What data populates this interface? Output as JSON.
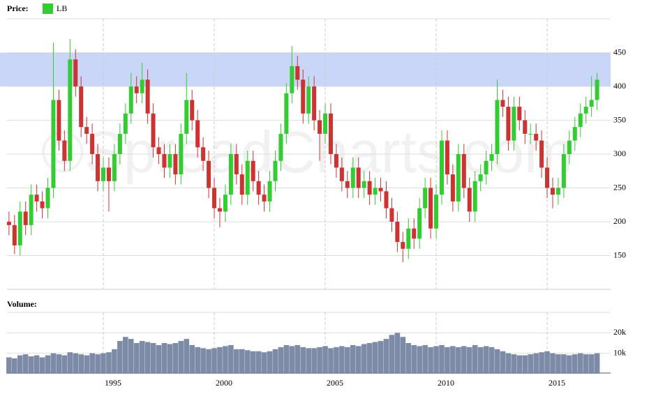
{
  "chart_data": {
    "type": "candlestick",
    "legend_label": "Price:",
    "series_name": "LB",
    "volume_label": "Volume:",
    "watermark": "©SpreadCharts.com",
    "x": [
      1990.75,
      1991,
      1991.25,
      1991.5,
      1991.75,
      1992,
      1992.25,
      1992.5,
      1992.75,
      1993,
      1993.25,
      1993.5,
      1993.75,
      1994,
      1994.25,
      1994.5,
      1994.75,
      1995,
      1995.25,
      1995.5,
      1995.75,
      1996,
      1996.25,
      1996.5,
      1996.75,
      1997,
      1997.25,
      1997.5,
      1997.75,
      1998,
      1998.25,
      1998.5,
      1998.75,
      1999,
      1999.25,
      1999.5,
      1999.75,
      2000,
      2000.25,
      2000.5,
      2000.75,
      2001,
      2001.25,
      2001.5,
      2001.75,
      2002,
      2002.25,
      2002.5,
      2002.75,
      2003,
      2003.25,
      2003.5,
      2003.75,
      2004,
      2004.25,
      2004.5,
      2004.75,
      2005,
      2005.25,
      2005.5,
      2005.75,
      2006,
      2006.25,
      2006.5,
      2006.75,
      2007,
      2007.25,
      2007.5,
      2007.75,
      2008,
      2008.25,
      2008.5,
      2008.75,
      2009,
      2009.25,
      2009.5,
      2009.75,
      2010,
      2010.25,
      2010.5,
      2010.75,
      2011,
      2011.25,
      2011.5,
      2011.75,
      2012,
      2012.25,
      2012.5,
      2012.75,
      2013,
      2013.25,
      2013.5,
      2013.75,
      2014,
      2014.25,
      2014.5,
      2014.75,
      2015,
      2015.25,
      2015.5,
      2015.75,
      2016,
      2016.25,
      2016.5,
      2016.75,
      2017,
      2017.25
    ],
    "open": [
      200,
      195,
      165,
      215,
      195,
      240,
      230,
      220,
      250,
      380,
      320,
      290,
      440,
      400,
      340,
      330,
      300,
      260,
      280,
      260,
      300,
      330,
      360,
      400,
      390,
      410,
      360,
      310,
      300,
      280,
      300,
      270,
      330,
      380,
      350,
      310,
      290,
      250,
      220,
      215,
      240,
      300,
      270,
      240,
      290,
      260,
      240,
      230,
      260,
      290,
      330,
      390,
      430,
      410,
      360,
      400,
      350,
      330,
      360,
      300,
      280,
      260,
      250,
      280,
      250,
      260,
      240,
      250,
      245,
      220,
      200,
      170,
      160,
      190,
      175,
      220,
      250,
      190,
      240,
      320,
      270,
      230,
      300,
      250,
      215,
      260,
      270,
      290,
      300,
      380,
      370,
      320,
      370,
      350,
      330,
      330,
      320,
      280,
      250,
      240,
      250,
      300,
      320,
      340,
      360,
      370,
      380
    ],
    "high": [
      215,
      210,
      230,
      230,
      255,
      255,
      245,
      265,
      465,
      395,
      335,
      470,
      455,
      415,
      355,
      345,
      315,
      295,
      295,
      315,
      345,
      375,
      420,
      415,
      435,
      425,
      375,
      325,
      315,
      315,
      315,
      345,
      420,
      395,
      365,
      325,
      305,
      265,
      235,
      255,
      315,
      315,
      285,
      305,
      305,
      275,
      255,
      275,
      305,
      345,
      405,
      460,
      445,
      425,
      415,
      415,
      365,
      375,
      375,
      315,
      295,
      275,
      295,
      295,
      275,
      275,
      265,
      265,
      260,
      235,
      215,
      185,
      205,
      205,
      235,
      265,
      265,
      255,
      335,
      335,
      285,
      315,
      315,
      265,
      275,
      285,
      305,
      315,
      410,
      395,
      385,
      385,
      385,
      365,
      345,
      345,
      335,
      295,
      265,
      265,
      315,
      335,
      355,
      375,
      385,
      415,
      420
    ],
    "low": [
      180,
      152,
      150,
      180,
      180,
      215,
      205,
      205,
      235,
      305,
      275,
      275,
      385,
      325,
      315,
      285,
      245,
      245,
      215,
      245,
      285,
      315,
      345,
      375,
      375,
      345,
      295,
      285,
      265,
      265,
      255,
      255,
      315,
      335,
      295,
      275,
      235,
      205,
      192,
      200,
      225,
      255,
      225,
      225,
      245,
      225,
      215,
      215,
      245,
      275,
      315,
      375,
      395,
      345,
      345,
      335,
      290,
      315,
      285,
      265,
      245,
      235,
      235,
      235,
      235,
      225,
      225,
      230,
      205,
      185,
      155,
      140,
      145,
      160,
      160,
      205,
      175,
      175,
      225,
      255,
      215,
      215,
      235,
      200,
      200,
      245,
      255,
      275,
      285,
      355,
      305,
      305,
      335,
      315,
      315,
      305,
      265,
      235,
      220,
      225,
      235,
      285,
      305,
      325,
      345,
      355,
      365
    ],
    "close": [
      195,
      165,
      215,
      195,
      240,
      230,
      220,
      250,
      380,
      320,
      290,
      440,
      400,
      340,
      330,
      300,
      260,
      280,
      260,
      300,
      330,
      360,
      400,
      390,
      410,
      360,
      310,
      300,
      280,
      300,
      270,
      330,
      380,
      350,
      310,
      290,
      250,
      220,
      215,
      240,
      300,
      270,
      240,
      290,
      260,
      240,
      230,
      260,
      290,
      330,
      390,
      430,
      410,
      360,
      400,
      350,
      330,
      360,
      300,
      280,
      260,
      250,
      280,
      250,
      260,
      240,
      250,
      245,
      220,
      200,
      170,
      160,
      190,
      175,
      220,
      250,
      190,
      240,
      320,
      270,
      230,
      300,
      250,
      215,
      260,
      270,
      290,
      300,
      380,
      370,
      320,
      370,
      350,
      330,
      330,
      320,
      280,
      250,
      240,
      250,
      300,
      320,
      340,
      360,
      370,
      380,
      410
    ],
    "volume": [
      8000,
      7500,
      9000,
      9500,
      8500,
      9000,
      8000,
      9000,
      10000,
      9500,
      9000,
      10500,
      10000,
      9500,
      9000,
      10000,
      9500,
      10000,
      10500,
      12000,
      16000,
      18000,
      17000,
      15000,
      16000,
      15500,
      15000,
      14000,
      15000,
      14500,
      15000,
      16000,
      17000,
      14000,
      13000,
      12500,
      12000,
      12500,
      13000,
      13500,
      14000,
      12000,
      12000,
      11500,
      11000,
      11000,
      10500,
      11000,
      12000,
      13000,
      14000,
      13500,
      14000,
      13000,
      12500,
      12500,
      13000,
      13500,
      12500,
      13000,
      13500,
      13000,
      14000,
      13500,
      14500,
      15000,
      15500,
      16000,
      17000,
      19000,
      20000,
      18000,
      15000,
      14000,
      13500,
      14000,
      13000,
      13500,
      14000,
      13000,
      13500,
      13000,
      13500,
      13000,
      14000,
      13000,
      13500,
      13000,
      12000,
      11000,
      10000,
      9500,
      9000,
      9000,
      9500,
      10000,
      10500,
      11000,
      10000,
      9500,
      9500,
      9000,
      9500,
      10000,
      9500,
      9500,
      10000
    ],
    "color": "#33cc33",
    "up_color": "#33cc33",
    "down_color": "#cc3333",
    "volume_color": "#7d8ba6",
    "xlim": [
      1990.66,
      2017.86
    ],
    "xticks": [
      1995,
      2000,
      2005,
      2010,
      2015
    ],
    "ylim": [
      100,
      500
    ],
    "yticks": [
      150,
      200,
      250,
      300,
      350,
      400,
      450
    ],
    "volume_ylim": [
      0,
      30000
    ],
    "volume_yticks": [
      {
        "value": 10000,
        "label": "10k"
      },
      {
        "value": 20000,
        "label": "20k"
      }
    ],
    "highlight": {
      "from": 400,
      "to": 450,
      "color": "#c9d6f7"
    },
    "grid": true
  }
}
